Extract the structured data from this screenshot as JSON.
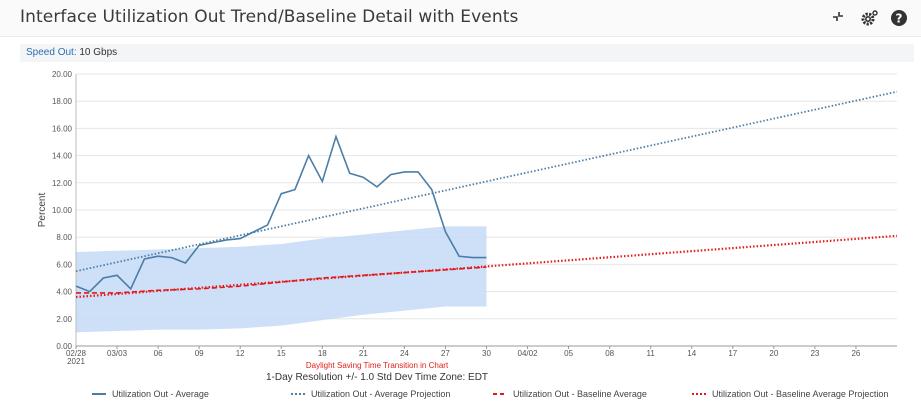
{
  "header": {
    "title": "Interface Utilization Out Trend/Baseline Detail with Events",
    "icons": [
      "collapse-icon",
      "settings-icon",
      "help-icon"
    ]
  },
  "speed": {
    "label": "Speed Out:",
    "value": " 10 Gbps"
  },
  "colors": {
    "average": "#4a7ea8",
    "average_projection": "#4a7ea8",
    "baseline_average": "#e41a1a",
    "baseline_projection": "#e41a1a",
    "band": "#c9dcf7",
    "dst_text": "#e0201a"
  },
  "chart_data": {
    "type": "line",
    "ylabel": "Percent",
    "xlabel": "1-Day Resolution +/- 1.0 Std Dev Time Zone: EDT",
    "annotation": "Daylight Saving Time Transition in Chart",
    "ylim": [
      0,
      20
    ],
    "yticks": [
      "0.00",
      "2.00",
      "4.00",
      "6.00",
      "8.00",
      "10.00",
      "12.00",
      "14.00",
      "16.00",
      "18.00",
      "20.00"
    ],
    "x_start": "2021-02-28",
    "x_range_days": [
      0,
      60
    ],
    "xticks": [
      {
        "day": 0,
        "label": "02/28",
        "sub": "2021"
      },
      {
        "day": 3,
        "label": "03/03"
      },
      {
        "day": 6,
        "label": "06"
      },
      {
        "day": 9,
        "label": "09"
      },
      {
        "day": 12,
        "label": "12"
      },
      {
        "day": 15,
        "label": "15"
      },
      {
        "day": 18,
        "label": "18"
      },
      {
        "day": 21,
        "label": "21"
      },
      {
        "day": 24,
        "label": "24"
      },
      {
        "day": 27,
        "label": "27"
      },
      {
        "day": 30,
        "label": "30"
      },
      {
        "day": 33,
        "label": "04/02"
      },
      {
        "day": 36,
        "label": "05"
      },
      {
        "day": 39,
        "label": "08"
      },
      {
        "day": 42,
        "label": "11"
      },
      {
        "day": 45,
        "label": "14"
      },
      {
        "day": 48,
        "label": "17"
      },
      {
        "day": 51,
        "label": "20"
      },
      {
        "day": 54,
        "label": "23"
      },
      {
        "day": 57,
        "label": "26"
      }
    ],
    "series": [
      {
        "name": "Utilization Out - Average",
        "style": "solid",
        "x": [
          0,
          1,
          2,
          3,
          4,
          5,
          6,
          7,
          8,
          9,
          10,
          11,
          12,
          13,
          14,
          15,
          16,
          17,
          18,
          19,
          20,
          21,
          22,
          23,
          24,
          25,
          26,
          27,
          28,
          29,
          30
        ],
        "y": [
          4.4,
          4.0,
          5.0,
          5.2,
          4.2,
          6.4,
          6.6,
          6.5,
          6.1,
          7.4,
          7.6,
          7.8,
          7.9,
          8.4,
          8.9,
          11.2,
          11.5,
          14.0,
          12.1,
          15.4,
          12.7,
          12.4,
          11.7,
          12.6,
          12.8,
          12.8,
          11.5,
          8.4,
          6.6,
          6.5,
          6.5
        ]
      },
      {
        "name": "Utilization Out - Average Projection",
        "style": "dotted",
        "x": [
          0,
          60
        ],
        "y": [
          5.5,
          18.7
        ]
      },
      {
        "name": "Utilization Out - Baseline Average",
        "style": "dashed",
        "x": [
          0,
          3,
          6,
          9,
          12,
          15,
          18,
          21,
          24,
          27,
          30
        ],
        "y": [
          3.9,
          3.9,
          4.1,
          4.2,
          4.4,
          4.7,
          5.0,
          5.2,
          5.4,
          5.6,
          5.8
        ]
      },
      {
        "name": "Utilization Out - Baseline Average Projection",
        "style": "dotted",
        "x": [
          0,
          60
        ],
        "y": [
          3.6,
          8.1
        ]
      }
    ],
    "band": {
      "x": [
        0,
        3,
        6,
        9,
        12,
        15,
        18,
        21,
        24,
        27,
        30
      ],
      "upper": [
        6.9,
        7.0,
        7.1,
        7.2,
        7.3,
        7.5,
        7.9,
        8.2,
        8.5,
        8.8,
        8.8
      ],
      "lower": [
        1.0,
        1.1,
        1.2,
        1.2,
        1.3,
        1.5,
        1.9,
        2.3,
        2.6,
        2.9,
        2.9
      ]
    }
  }
}
